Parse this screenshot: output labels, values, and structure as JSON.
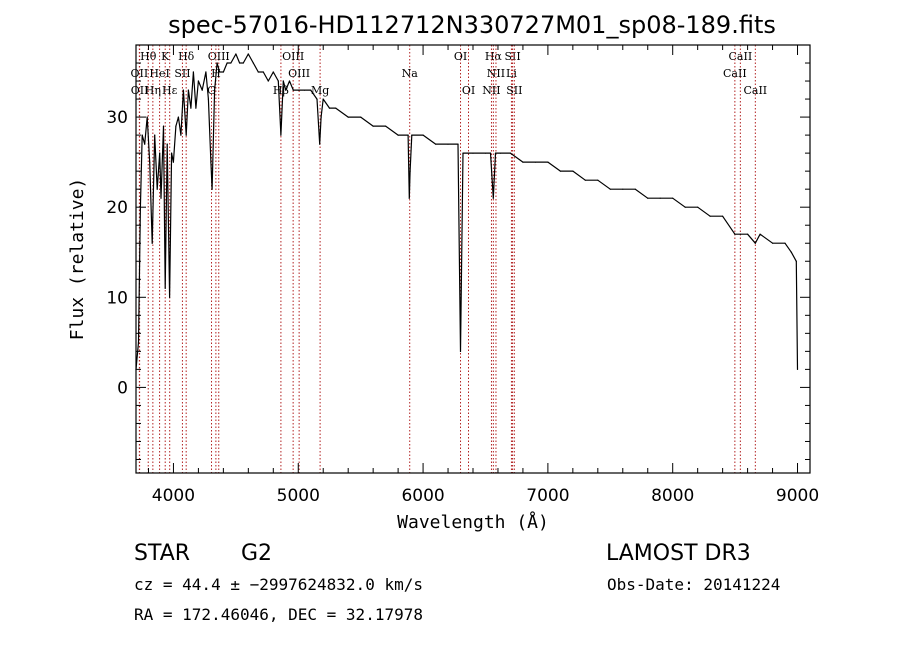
{
  "chart_data": {
    "type": "line",
    "title": "spec-57016-HD112712N330727M01_sp08-189.fits",
    "xlabel": "Wavelength (Å)",
    "ylabel": "Flux (relative)",
    "xlim": [
      3700,
      9100
    ],
    "ylim": [
      -9.5,
      38
    ],
    "x_ticks": [
      4000,
      5000,
      6000,
      7000,
      8000,
      9000
    ],
    "x_tick_labels": [
      "4000",
      "5000",
      "6000",
      "7000",
      "8000",
      "9000"
    ],
    "y_ticks": [
      0,
      10,
      20,
      30
    ],
    "y_tick_labels": [
      "0",
      "10",
      "20",
      "30"
    ],
    "grid": false,
    "series": [
      {
        "name": "flux",
        "color": "#000000",
        "x": [
          3700,
          3720,
          3735,
          3750,
          3770,
          3790,
          3810,
          3830,
          3850,
          3870,
          3890,
          3900,
          3920,
          3934,
          3950,
          3969,
          3985,
          4000,
          4020,
          4040,
          4060,
          4080,
          4102,
          4120,
          4140,
          4160,
          4180,
          4200,
          4230,
          4260,
          4280,
          4300,
          4310,
          4330,
          4350,
          4370,
          4400,
          4430,
          4460,
          4500,
          4530,
          4560,
          4600,
          4640,
          4680,
          4720,
          4760,
          4800,
          4840,
          4861,
          4880,
          4900,
          4930,
          4960,
          5000,
          5050,
          5100,
          5150,
          5172,
          5183,
          5200,
          5250,
          5300,
          5400,
          5500,
          5600,
          5700,
          5800,
          5880,
          5890,
          5896,
          5910,
          6000,
          6100,
          6200,
          6280,
          6300,
          6320,
          6400,
          6500,
          6540,
          6563,
          6580,
          6620,
          6700,
          6800,
          6900,
          7000,
          7100,
          7200,
          7300,
          7400,
          7500,
          7600,
          7700,
          7800,
          7900,
          8000,
          8100,
          8200,
          8300,
          8400,
          8498,
          8542,
          8600,
          8662,
          8700,
          8800,
          8900,
          8950,
          8990,
          9000
        ],
        "values": [
          2,
          5,
          20,
          28,
          27,
          30,
          25,
          16,
          28,
          22,
          26,
          21,
          29,
          11,
          27,
          10,
          26,
          25,
          29,
          30,
          28,
          33,
          28,
          33,
          31,
          35,
          31,
          34,
          33,
          35,
          32,
          25,
          22,
          33,
          36,
          35,
          35,
          36,
          36,
          37,
          36,
          36,
          37,
          36,
          35,
          35,
          34,
          35,
          34,
          28,
          34,
          33,
          34,
          33,
          33,
          33,
          33,
          32,
          27,
          30,
          32,
          31,
          31,
          30,
          30,
          29,
          29,
          28,
          28,
          21,
          24,
          28,
          28,
          27,
          27,
          27,
          4,
          26,
          26,
          26,
          26,
          21,
          26,
          26,
          26,
          25,
          25,
          25,
          24,
          24,
          23,
          23,
          22,
          22,
          22,
          21,
          21,
          21,
          20,
          20,
          19,
          19,
          17,
          17,
          17,
          16,
          17,
          16,
          16,
          15,
          14,
          2
        ]
      }
    ],
    "line_markers": [
      {
        "label": "Hθ",
        "x": 3798,
        "row": 1
      },
      {
        "label": "K",
        "x": 3934,
        "row": 1
      },
      {
        "label": "Hδ",
        "x": 4102,
        "row": 1
      },
      {
        "label": "OIII",
        "x": 4363,
        "row": 1
      },
      {
        "label": "OIII",
        "x": 4959,
        "row": 1
      },
      {
        "label": "OI",
        "x": 6300,
        "row": 1
      },
      {
        "label": "Hα",
        "x": 6563,
        "row": 1
      },
      {
        "label": "SII",
        "x": 6717,
        "row": 1
      },
      {
        "label": "CaII",
        "x": 8542,
        "row": 1
      },
      {
        "label": "OII",
        "x": 3727,
        "row": 2
      },
      {
        "label": "HeI",
        "x": 3889,
        "row": 2
      },
      {
        "label": "SII",
        "x": 4072,
        "row": 2
      },
      {
        "label": "H",
        "x": 4340,
        "row": 2
      },
      {
        "label": "OIII",
        "x": 5007,
        "row": 2
      },
      {
        "label": "Na",
        "x": 5893,
        "row": 2
      },
      {
        "label": "NII",
        "x": 6584,
        "row": 2
      },
      {
        "label": "Li",
        "x": 6708,
        "row": 2
      },
      {
        "label": "CaII",
        "x": 8498,
        "row": 2
      },
      {
        "label": "OII",
        "x": 3729,
        "row": 3
      },
      {
        "label": "Hη",
        "x": 3835,
        "row": 3
      },
      {
        "label": "Hε",
        "x": 3970,
        "row": 3
      },
      {
        "label": "G",
        "x": 4305,
        "row": 3
      },
      {
        "label": "Hβ",
        "x": 4861,
        "row": 3
      },
      {
        "label": "Mg",
        "x": 5175,
        "row": 3
      },
      {
        "label": "OI",
        "x": 6364,
        "row": 3
      },
      {
        "label": "NII",
        "x": 6548,
        "row": 3
      },
      {
        "label": "SII",
        "x": 6731,
        "row": 3
      },
      {
        "label": "CaII",
        "x": 8662,
        "row": 3
      }
    ],
    "marker_color": "#b22222"
  },
  "info": {
    "object_class": "STAR",
    "subclass": "G2",
    "survey": "LAMOST DR3",
    "cz_line": "cz = 44.4 ± −2997624832.0 km/s",
    "obs_date": "Obs-Date: 20141224",
    "coords": "RA = 172.46046, DEC =  32.17978"
  }
}
